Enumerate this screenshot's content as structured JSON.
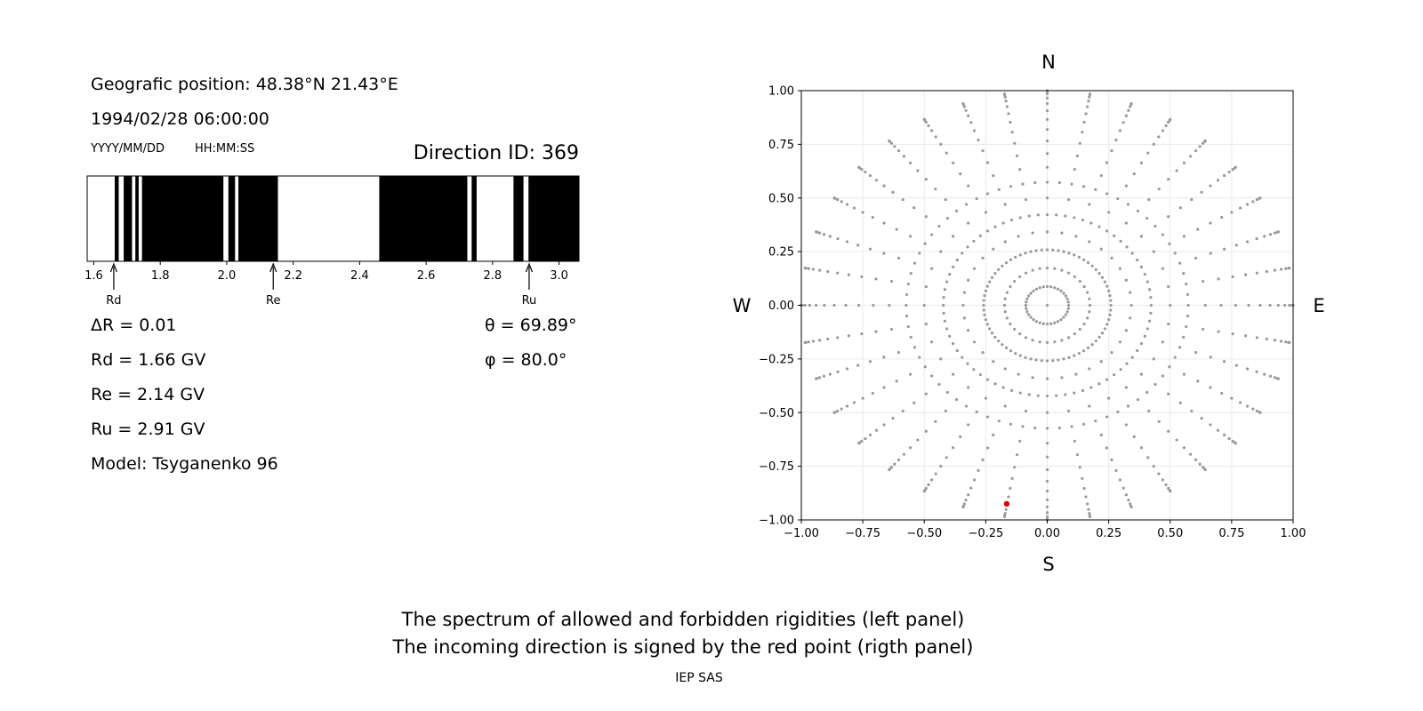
{
  "header": {
    "geo_position": "Geografic position: 48.38°N 21.43°E",
    "datetime": "1994/02/28 06:00:00",
    "date_format": "YYYY/MM/DD",
    "time_format": "HH:MM:SS",
    "direction_id": "Direction ID: 369"
  },
  "stats": {
    "delta_r": "ΔR = 0.01",
    "rd": "Rd = 1.66 GV",
    "re": "Re = 2.14 GV",
    "ru": "Ru = 2.91 GV",
    "model": "Model: Tsyganenko 96",
    "theta": "θ = 69.89°",
    "phi": "φ = 80.0°"
  },
  "compass": {
    "n": "N",
    "s": "S",
    "w": "W",
    "e": "E"
  },
  "footer": {
    "line1": "The spectrum of allowed and forbidden rigidities (left panel)",
    "line2": "The incoming direction is signed by the red point (rigth panel)",
    "credit": "IEP SAS"
  },
  "colors": {
    "forbidden": "#000000",
    "allowed": "#ffffff",
    "grid_point": "#999999",
    "direction_point": "#dd0000"
  },
  "chart_data": [
    {
      "type": "bar",
      "name": "rigidity spectrum",
      "xlim": [
        1.58,
        3.06
      ],
      "ticks": [
        1.6,
        1.8,
        2.0,
        2.2,
        2.4,
        2.6,
        2.8,
        3.0
      ],
      "tick_labels": [
        "1.6",
        "1.8",
        "2.0",
        "2.2",
        "2.4",
        "2.6",
        "2.8",
        "3.0"
      ],
      "forbidden_bands": [
        [
          1.663,
          1.675
        ],
        [
          1.69,
          1.715
        ],
        [
          1.725,
          1.735
        ],
        [
          1.745,
          1.99
        ],
        [
          2.005,
          2.025
        ],
        [
          2.035,
          2.154
        ],
        [
          2.459,
          2.724
        ],
        [
          2.737,
          2.752
        ],
        [
          2.863,
          2.893
        ],
        [
          2.908,
          3.06
        ]
      ],
      "markers": [
        {
          "label": "Rd",
          "value": 1.66
        },
        {
          "label": "Re",
          "value": 2.14
        },
        {
          "label": "Ru",
          "value": 2.91
        }
      ]
    },
    {
      "type": "scatter",
      "name": "directions",
      "xlim": [
        -1.0,
        1.0
      ],
      "ylim": [
        -1.0,
        1.0
      ],
      "ticks": [
        -1.0,
        -0.75,
        -0.5,
        -0.25,
        0.0,
        0.25,
        0.5,
        0.75,
        1.0
      ],
      "tick_labels": [
        "−1.00",
        "−0.75",
        "−0.50",
        "−0.25",
        "0.00",
        "0.25",
        "0.50",
        "0.75",
        "1.00"
      ],
      "grid": true,
      "zenith_step_deg": 5,
      "max_zenith_deg": 90,
      "azimuth_step_deg": 10,
      "ring_zeniths_deg": [
        15,
        25,
        35
      ],
      "ring_azimuth_step_deg": 5,
      "highlight": {
        "theta_deg": 69.89,
        "phi_deg": 80.0,
        "x": -0.165,
        "y": -0.925
      }
    }
  ]
}
